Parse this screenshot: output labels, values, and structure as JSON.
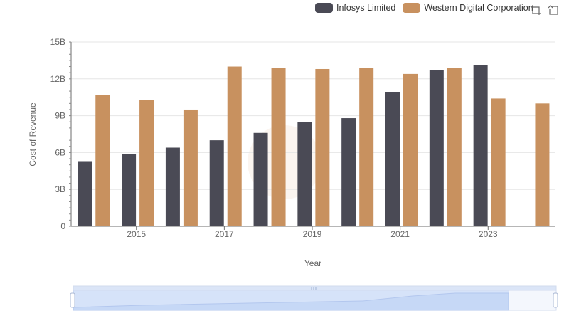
{
  "legend": {
    "items": [
      {
        "label": "Infosys Limited",
        "color": "#4a4a55"
      },
      {
        "label": "Western Digital Corporation",
        "color": "#c8915f"
      }
    ]
  },
  "toolbox": {
    "icons": [
      "zoom-icon",
      "restore-icon"
    ]
  },
  "chart_data": {
    "type": "bar",
    "xlabel": "Year",
    "ylabel": "Cost of Revenue",
    "ylim": [
      0,
      15000000000
    ],
    "yticks": [
      {
        "value": 0,
        "label": "0"
      },
      {
        "value": 3000000000,
        "label": "3B"
      },
      {
        "value": 6000000000,
        "label": "6B"
      },
      {
        "value": 9000000000,
        "label": "9B"
      },
      {
        "value": 12000000000,
        "label": "12B"
      },
      {
        "value": 15000000000,
        "label": "15B"
      }
    ],
    "categories": [
      "2014",
      "2015",
      "2016",
      "2017",
      "2018",
      "2019",
      "2020",
      "2021",
      "2022",
      "2023",
      "2024"
    ],
    "xtick_labels": [
      "2015",
      "2017",
      "2019",
      "2021",
      "2023"
    ],
    "grid": true,
    "legend_position": "top-right",
    "series": [
      {
        "name": "Infosys Limited",
        "color": "#4a4a55",
        "values": [
          5300000000,
          5900000000,
          6400000000,
          7000000000,
          7600000000,
          8500000000,
          8800000000,
          10900000000,
          12700000000,
          13100000000,
          null
        ]
      },
      {
        "name": "Western Digital Corporation",
        "color": "#c8915f",
        "values": [
          10700000000,
          10300000000,
          9500000000,
          13000000000,
          12900000000,
          12800000000,
          12900000000,
          12400000000,
          12900000000,
          10400000000,
          10000000000
        ]
      }
    ]
  }
}
